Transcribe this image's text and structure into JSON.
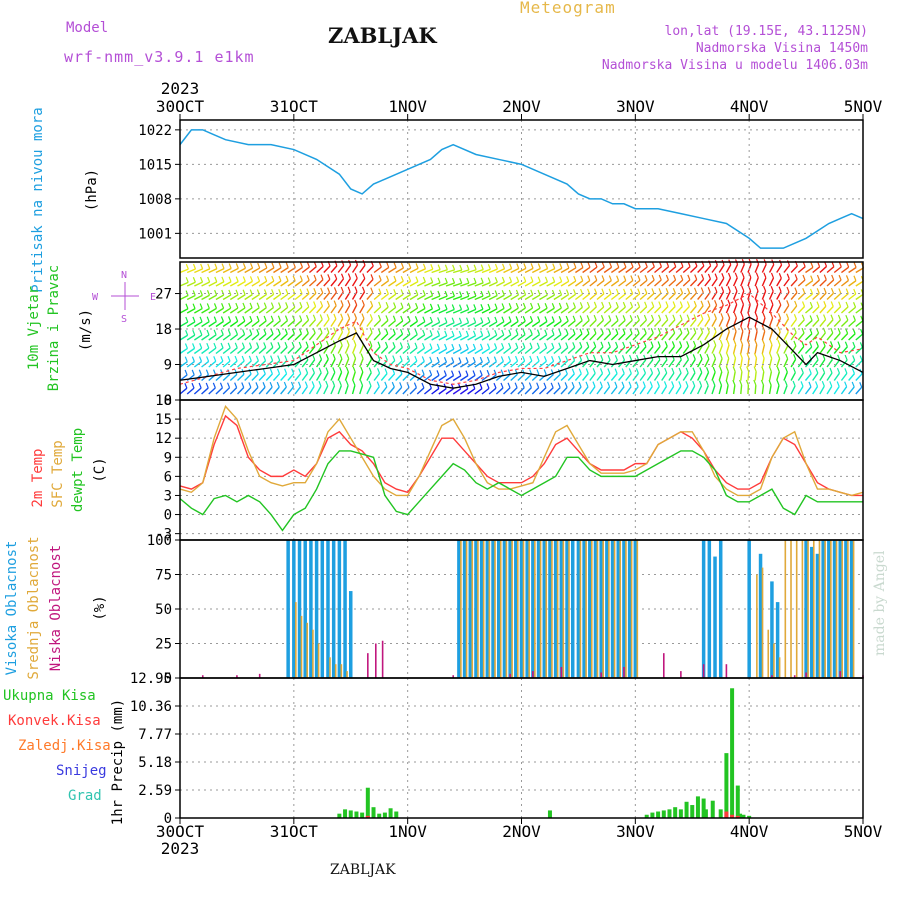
{
  "header": {
    "model_label": "Model",
    "run_label": "wrf-nmm_v3.9.1 e1km",
    "title": "ZABLJAK",
    "product": "Meteogram",
    "coords": "lon,lat (19.15E, 43.1125N)",
    "elevation": "Nadmorska Visina 1450m",
    "model_elevation": "Nadmorska Visina u modelu 1406.03m"
  },
  "footer": {
    "station": "ZABLJAK",
    "credit": "made by Angel"
  },
  "colors": {
    "pressure": "#1e9fe0",
    "wind_speed": "#000000",
    "wind_gust": "#ff4040",
    "t2m": "#ff3b3b",
    "sfc_temp": "#e0a93a",
    "dewpoint": "#22c422",
    "cloud_high": "#1e9fe0",
    "cloud_mid": "#e0a93a",
    "cloud_low": "#c0177e",
    "precip_total": "#22c422",
    "precip_conv": "#ff3b3b",
    "precip_frz": "#ff7a2a",
    "snow": "#3a3adf",
    "hail": "#30c4b0",
    "purple_label": "#b44fd6"
  },
  "chart_data": [
    {
      "type": "line",
      "panel": "pressure",
      "ylabel": "Pritisak na nivou mora",
      "unit": "(hPa)",
      "ylim": [
        996,
        1024
      ],
      "yticks": [
        1001,
        1008,
        1015,
        1022
      ],
      "grid": true,
      "x_start_label": "2023",
      "x_ticks": [
        "30OCT",
        "31OCT",
        "1NOV",
        "2NOV",
        "3NOV",
        "4NOV",
        "5NOV"
      ],
      "series": [
        {
          "name": "Pritisak na nivou mora",
          "x": [
            0,
            0.1,
            0.2,
            0.3,
            0.4,
            0.6,
            0.8,
            1.0,
            1.2,
            1.4,
            1.5,
            1.6,
            1.7,
            1.8,
            2.0,
            2.2,
            2.3,
            2.4,
            2.6,
            2.8,
            3.0,
            3.2,
            3.4,
            3.5,
            3.6,
            3.7,
            3.8,
            3.9,
            4.0,
            4.2,
            4.4,
            4.6,
            4.8,
            5.0,
            5.1,
            5.3,
            5.5,
            5.7,
            5.8,
            5.9,
            6.0
          ],
          "y": [
            1019,
            1022,
            1022,
            1021,
            1020,
            1019,
            1019,
            1018,
            1016,
            1013,
            1010,
            1009,
            1011,
            1012,
            1014,
            1016,
            1018,
            1019,
            1017,
            1016,
            1015,
            1013,
            1011,
            1009,
            1008,
            1008,
            1007,
            1007,
            1006,
            1006,
            1005,
            1004,
            1003,
            1000,
            998,
            998,
            1000,
            1003,
            1004,
            1005,
            1004
          ]
        }
      ]
    },
    {
      "type": "line",
      "panel": "wind",
      "ylabel": "10m Vjetar",
      "ylabel2": "Brzina i Pravac",
      "unit": "(m/s)",
      "compass_labels": [
        "N",
        "W",
        "E",
        "S"
      ],
      "ylim": [
        0,
        35
      ],
      "yticks": [
        0,
        9,
        18,
        27
      ],
      "grid": true,
      "series": [
        {
          "name": "speed",
          "x": [
            0,
            0.25,
            0.5,
            0.75,
            1.0,
            1.2,
            1.4,
            1.55,
            1.7,
            1.85,
            2.0,
            2.2,
            2.4,
            2.6,
            2.8,
            3.0,
            3.2,
            3.4,
            3.6,
            3.8,
            4.0,
            4.2,
            4.4,
            4.6,
            4.8,
            5.0,
            5.2,
            5.4,
            5.5,
            5.6,
            5.8,
            6.0
          ],
          "y": [
            5,
            6,
            7,
            8,
            9,
            12,
            15,
            17,
            10,
            8,
            7,
            4,
            3,
            4,
            6,
            7,
            6,
            8,
            10,
            9,
            10,
            11,
            11,
            14,
            18,
            21,
            18,
            12,
            9,
            12,
            10,
            7
          ]
        },
        {
          "name": "gust",
          "x": [
            0,
            0.25,
            0.5,
            0.75,
            1.0,
            1.2,
            1.4,
            1.55,
            1.7,
            1.85,
            2.0,
            2.2,
            2.4,
            2.6,
            2.8,
            3.0,
            3.2,
            3.4,
            3.6,
            3.8,
            4.0,
            4.2,
            4.4,
            4.6,
            4.8,
            5.0,
            5.2,
            5.4,
            5.5,
            5.6,
            5.8,
            6.0
          ],
          "y": [
            4,
            6,
            8,
            9,
            10,
            14,
            18,
            20,
            12,
            9,
            8,
            5,
            4,
            5,
            7,
            8,
            8,
            10,
            12,
            12,
            14,
            16,
            19,
            22,
            24,
            27,
            22,
            16,
            14,
            16,
            12,
            13
          ]
        }
      ]
    },
    {
      "type": "line",
      "panel": "temperature",
      "ylabel": [
        "2m Temp",
        "SFC Temp",
        "dewpt Temp"
      ],
      "unit": "(C)",
      "ylim": [
        -4,
        18
      ],
      "yticks": [
        -3,
        0,
        3,
        6,
        9,
        12,
        15,
        18
      ],
      "grid": true,
      "x": [
        0,
        0.1,
        0.2,
        0.3,
        0.4,
        0.5,
        0.6,
        0.7,
        0.8,
        0.9,
        1.0,
        1.1,
        1.2,
        1.3,
        1.4,
        1.5,
        1.6,
        1.7,
        1.8,
        1.9,
        2.0,
        2.1,
        2.2,
        2.3,
        2.4,
        2.5,
        2.6,
        2.7,
        2.8,
        2.9,
        3.0,
        3.1,
        3.2,
        3.3,
        3.4,
        3.5,
        3.6,
        3.7,
        3.8,
        3.9,
        4.0,
        4.1,
        4.2,
        4.3,
        4.4,
        4.5,
        4.6,
        4.7,
        4.8,
        4.9,
        5.0,
        5.1,
        5.2,
        5.3,
        5.4,
        5.5,
        5.6,
        5.7,
        5.8,
        5.9,
        6.0
      ],
      "series": [
        {
          "name": "2m Temp",
          "y": [
            4.5,
            4,
            5,
            11,
            15.5,
            14,
            9,
            7,
            6,
            6,
            7,
            6,
            8,
            12,
            13,
            11,
            10,
            8,
            5,
            4,
            3.5,
            6,
            9,
            12,
            12,
            10,
            8,
            6,
            5,
            5,
            5,
            6,
            8,
            11,
            12,
            10,
            8,
            7,
            7,
            7,
            8,
            8,
            11,
            12,
            13,
            12,
            10,
            7,
            5,
            4,
            4,
            5,
            9,
            12,
            11,
            8,
            5,
            4,
            3.5,
            3,
            3
          ]
        },
        {
          "name": "SFC Temp",
          "y": [
            4,
            3.5,
            5,
            12,
            17,
            15,
            10,
            6,
            5,
            4.5,
            5,
            5,
            8,
            13,
            15,
            12,
            9,
            6,
            4,
            3,
            3,
            6,
            10,
            14,
            15,
            12,
            8,
            5,
            4,
            4,
            4.5,
            5,
            9,
            13,
            14,
            11,
            8,
            6.5,
            6.5,
            6.5,
            7,
            8,
            11,
            12,
            13,
            13,
            10,
            6,
            4,
            3,
            3,
            4,
            9,
            12,
            13,
            8,
            4,
            4,
            3.5,
            3,
            3.5
          ]
        },
        {
          "name": "dewpt Temp",
          "y": [
            2.5,
            1,
            0,
            2.5,
            3,
            2,
            3,
            2,
            0,
            -2.5,
            0,
            1,
            4,
            8,
            10,
            10,
            9.5,
            9,
            3,
            0.5,
            0,
            2,
            4,
            6,
            8,
            7,
            5,
            4,
            5,
            4,
            3,
            4,
            5,
            6,
            9,
            9,
            7,
            6,
            6,
            6,
            6,
            7,
            8,
            9,
            10,
            10,
            9,
            7,
            3,
            2,
            2,
            3,
            4,
            1,
            0,
            3,
            2,
            2,
            2,
            2,
            2
          ]
        }
      ]
    },
    {
      "type": "bar",
      "panel": "clouds",
      "ylabel": [
        "Visoka Oblacnost",
        "Srednja Oblacnost",
        "Niska Oblacnost"
      ],
      "unit": "(%)",
      "ylim": [
        0,
        100
      ],
      "yticks": [
        0,
        25,
        50,
        75,
        100
      ],
      "grid": true,
      "series": [
        {
          "name": "Visoka Oblacnost",
          "x": [
            0.95,
            1.0,
            1.05,
            1.1,
            1.15,
            1.2,
            1.25,
            1.3,
            1.35,
            1.4,
            1.45,
            1.5,
            2.45,
            2.5,
            2.55,
            2.6,
            2.65,
            2.7,
            2.75,
            2.8,
            2.85,
            2.9,
            2.95,
            3.0,
            3.05,
            3.1,
            3.15,
            3.2,
            3.25,
            3.3,
            3.35,
            3.4,
            3.45,
            3.5,
            3.55,
            3.6,
            3.65,
            3.7,
            3.75,
            3.8,
            3.85,
            3.9,
            3.95,
            4.0,
            4.05,
            4.1,
            4.15,
            4.2,
            4.25,
            4.3,
            4.35,
            4.4,
            4.45,
            4.5,
            4.55,
            4.6,
            4.65,
            4.7,
            4.75,
            5.0,
            5.1,
            5.2,
            5.25,
            5.3,
            5.4,
            5.5,
            5.55,
            5.6,
            5.65,
            5.7,
            5.75,
            5.8,
            5.85,
            5.9
          ],
          "y": [
            100,
            100,
            100,
            100,
            100,
            100,
            100,
            100,
            100,
            100,
            100,
            63,
            100,
            100,
            100,
            100,
            100,
            100,
            100,
            100,
            100,
            100,
            100,
            100,
            100,
            100,
            100,
            100,
            100,
            100,
            100,
            100,
            100,
            100,
            100,
            100,
            100,
            100,
            100,
            100,
            100,
            100,
            100,
            100,
            0,
            0,
            0,
            0,
            0,
            0,
            0,
            0,
            0,
            0,
            0,
            100,
            100,
            88,
            100,
            100,
            90,
            70,
            55,
            0,
            0,
            100,
            95,
            90,
            100,
            100,
            100,
            100,
            100,
            100
          ]
        },
        {
          "name": "Srednja Oblacnost",
          "x": [
            1.0,
            1.05,
            1.1,
            1.15,
            1.2,
            1.3,
            1.35,
            1.4,
            1.45,
            2.45,
            2.5,
            2.55,
            2.6,
            2.65,
            2.7,
            2.75,
            2.8,
            2.85,
            2.9,
            2.95,
            3.0,
            3.05,
            3.1,
            3.15,
            3.2,
            3.25,
            3.3,
            3.35,
            3.4,
            3.5,
            3.55,
            3.6,
            3.65,
            3.7,
            3.75,
            3.8,
            3.85,
            3.9,
            3.95,
            4.0,
            5.05,
            5.1,
            5.15,
            5.2,
            5.25,
            5.3,
            5.35,
            5.4,
            5.45,
            5.5,
            5.55,
            5.6,
            5.65,
            5.7,
            5.75,
            5.8,
            5.85,
            5.9
          ],
          "y": [
            55,
            45,
            40,
            35,
            25,
            15,
            10,
            10,
            5,
            100,
            100,
            100,
            100,
            100,
            100,
            100,
            100,
            100,
            100,
            100,
            100,
            100,
            100,
            100,
            100,
            100,
            100,
            100,
            100,
            100,
            100,
            100,
            100,
            100,
            100,
            100,
            100,
            100,
            100,
            100,
            75,
            80,
            35,
            25,
            15,
            100,
            100,
            100,
            100,
            100,
            100,
            100,
            100,
            100,
            100,
            100,
            100,
            100
          ]
        },
        {
          "name": "Niska Oblacnost",
          "x": [
            0.2,
            0.5,
            0.7,
            1.65,
            1.72,
            1.78,
            2.4,
            2.9,
            3.1,
            3.35,
            3.7,
            3.9,
            4.25,
            4.4,
            4.6,
            4.8,
            5.2,
            5.4,
            5.5,
            5.8,
            6.0
          ],
          "y": [
            2,
            2,
            3,
            18,
            25,
            27,
            2,
            3,
            5,
            8,
            4,
            8,
            18,
            5,
            10,
            10,
            2,
            2,
            4,
            5,
            2
          ]
        }
      ]
    },
    {
      "type": "bar",
      "panel": "precip",
      "ylabel": "1hr Precip",
      "unit": "(mm)",
      "legend": [
        "Ukupna Kisa",
        "Konvek.Kisa",
        "Zaledj.Kisa",
        "Snijeg",
        "Grad"
      ],
      "ylim": [
        0,
        12.95
      ],
      "yticks": [
        0,
        2.59,
        5.18,
        7.77,
        10.36,
        12.95
      ],
      "yticklabels": [
        "0",
        "2.59",
        "5.18",
        "7.77",
        "10.36",
        "12.95"
      ],
      "grid": true,
      "x_end_label": "2023",
      "series": [
        {
          "name": "Ukupna Kisa",
          "x": [
            1.4,
            1.45,
            1.5,
            1.55,
            1.6,
            1.65,
            1.7,
            1.75,
            1.8,
            1.85,
            1.9,
            3.25,
            4.1,
            4.15,
            4.2,
            4.25,
            4.3,
            4.35,
            4.4,
            4.45,
            4.5,
            4.55,
            4.6,
            4.62,
            4.68,
            4.75,
            4.8,
            4.85,
            4.9,
            4.92,
            4.95,
            5.0
          ],
          "y": [
            0.4,
            0.8,
            0.7,
            0.6,
            0.5,
            2.8,
            1.0,
            0.4,
            0.5,
            0.9,
            0.6,
            0.7,
            0.3,
            0.5,
            0.6,
            0.7,
            0.8,
            1.0,
            0.8,
            1.5,
            1.2,
            2.0,
            1.8,
            0.8,
            1.6,
            0.8,
            6.0,
            12.0,
            3.0,
            0.4,
            0.3,
            0.2
          ]
        },
        {
          "name": "Konvek.Kisa",
          "x": [
            1.65,
            4.8,
            4.85,
            4.9
          ],
          "y": [
            0.2,
            0.6,
            0.3,
            0.2
          ]
        }
      ]
    }
  ]
}
